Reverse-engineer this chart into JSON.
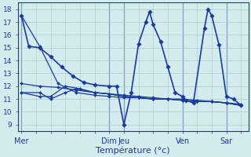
{
  "background_color": "#d4eced",
  "grid_color": "#a8cccc",
  "line_color": "#1a3a9e",
  "title": "Température (°c)",
  "ylim": [
    8.5,
    18.5
  ],
  "yticks": [
    9,
    10,
    11,
    12,
    13,
    14,
    15,
    16,
    17,
    18
  ],
  "day_labels": [
    "Mer",
    "Dim",
    "Jeu",
    "Ven",
    "Sar"
  ],
  "day_x": [
    0,
    24,
    28,
    44,
    56
  ],
  "xlim": [
    -1,
    62
  ],
  "series_main": [
    [
      0,
      17.5
    ],
    [
      2,
      15.1
    ],
    [
      5,
      15.0
    ],
    [
      8,
      14.3
    ],
    [
      11,
      13.5
    ],
    [
      14,
      12.8
    ],
    [
      17,
      12.3
    ],
    [
      20,
      12.1
    ],
    [
      24,
      12.0
    ],
    [
      26,
      12.0
    ],
    [
      28,
      9.0
    ],
    [
      30,
      11.5
    ],
    [
      32,
      15.3
    ],
    [
      34,
      17.0
    ],
    [
      35,
      17.8
    ],
    [
      36,
      16.8
    ],
    [
      38,
      15.5
    ],
    [
      40,
      13.5
    ],
    [
      42,
      11.5
    ],
    [
      44,
      11.2
    ],
    [
      45,
      10.9
    ],
    [
      47,
      10.7
    ],
    [
      50,
      16.5
    ],
    [
      51,
      18.0
    ],
    [
      52,
      17.5
    ],
    [
      54,
      15.2
    ],
    [
      56,
      11.2
    ],
    [
      58,
      11.0
    ],
    [
      60,
      10.5
    ]
  ],
  "series_flat1": [
    [
      0,
      17.5
    ],
    [
      5,
      15.1
    ],
    [
      10,
      12.2
    ],
    [
      15,
      11.5
    ],
    [
      20,
      11.3
    ],
    [
      24,
      11.2
    ],
    [
      28,
      11.1
    ],
    [
      32,
      11.1
    ],
    [
      36,
      11.0
    ],
    [
      40,
      11.0
    ],
    [
      44,
      10.9
    ],
    [
      48,
      10.8
    ],
    [
      52,
      10.8
    ],
    [
      56,
      10.7
    ],
    [
      60,
      10.5
    ]
  ],
  "series_flat2": [
    [
      0,
      12.2
    ],
    [
      5,
      12.0
    ],
    [
      10,
      11.9
    ],
    [
      15,
      11.7
    ],
    [
      20,
      11.5
    ],
    [
      24,
      11.4
    ],
    [
      28,
      11.3
    ],
    [
      32,
      11.2
    ],
    [
      36,
      11.1
    ],
    [
      40,
      11.0
    ],
    [
      44,
      11.0
    ],
    [
      48,
      10.9
    ],
    [
      52,
      10.8
    ],
    [
      56,
      10.7
    ],
    [
      60,
      10.5
    ]
  ],
  "series_flat3": [
    [
      0,
      11.5
    ],
    [
      5,
      11.5
    ],
    [
      8,
      11.0
    ],
    [
      12,
      11.5
    ],
    [
      15,
      11.8
    ],
    [
      20,
      11.5
    ],
    [
      24,
      11.4
    ],
    [
      28,
      11.2
    ],
    [
      32,
      11.1
    ],
    [
      36,
      11.0
    ],
    [
      40,
      11.0
    ],
    [
      44,
      10.9
    ],
    [
      48,
      10.8
    ],
    [
      52,
      10.8
    ],
    [
      56,
      10.7
    ],
    [
      60,
      10.6
    ]
  ],
  "series_flat4": [
    [
      0,
      11.5
    ],
    [
      5,
      11.2
    ],
    [
      8,
      11.2
    ],
    [
      12,
      12.0
    ],
    [
      16,
      11.8
    ],
    [
      20,
      11.5
    ],
    [
      24,
      11.4
    ],
    [
      28,
      11.2
    ],
    [
      32,
      11.1
    ],
    [
      36,
      11.0
    ],
    [
      40,
      11.0
    ],
    [
      44,
      10.9
    ],
    [
      48,
      10.8
    ],
    [
      52,
      10.8
    ],
    [
      56,
      10.7
    ],
    [
      60,
      10.5
    ]
  ]
}
